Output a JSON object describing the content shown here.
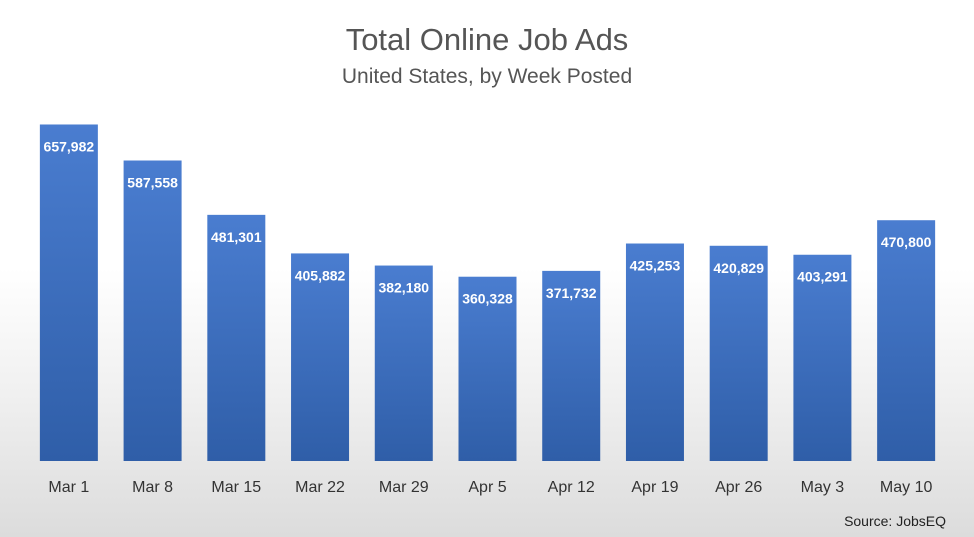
{
  "chart_data": {
    "type": "bar",
    "title": "Total Online Job Ads",
    "subtitle": "United States, by Week Posted",
    "categories": [
      "Mar 1",
      "Mar 8",
      "Mar 15",
      "Mar 22",
      "Mar 29",
      "Apr 5",
      "Apr 12",
      "Apr 19",
      "Apr 26",
      "May 3",
      "May 10"
    ],
    "values": [
      657982,
      587558,
      481301,
      405882,
      382180,
      360328,
      371732,
      425253,
      420829,
      403291,
      470800
    ],
    "data_labels": [
      "657,982",
      "587,558",
      "481,301",
      "405,882",
      "382,180",
      "360,328",
      "371,732",
      "425,253",
      "420,829",
      "403,291",
      "470,800"
    ],
    "ylim": [
      0,
      700000
    ],
    "grid": false,
    "legend": "none",
    "bar_color": "#4472c4",
    "label_color": "#ffffff"
  },
  "source": "Source: JobsEQ"
}
